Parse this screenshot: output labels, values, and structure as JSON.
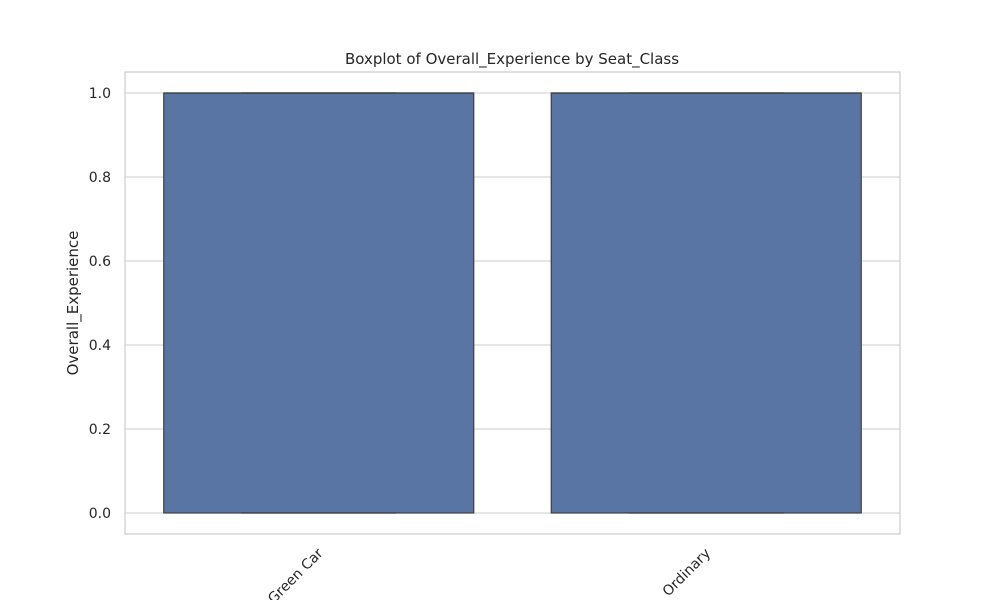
{
  "chart_data": {
    "type": "box",
    "title": "Boxplot of Overall_Experience by Seat_Class",
    "xlabel": "",
    "ylabel": "Overall_Experience",
    "categories": [
      "Green Car",
      "Ordinary"
    ],
    "boxes": [
      {
        "category": "Green Car",
        "min": 0.0,
        "q1": 0.0,
        "median": 1.0,
        "q3": 1.0,
        "max": 1.0
      },
      {
        "category": "Ordinary",
        "min": 0.0,
        "q1": 0.0,
        "median": 1.0,
        "q3": 1.0,
        "max": 1.0
      }
    ],
    "ylim": [
      -0.05,
      1.05
    ],
    "yticks": [
      0.0,
      0.2,
      0.4,
      0.6,
      0.8,
      1.0
    ],
    "ytick_labels": [
      "0.0",
      "0.2",
      "0.4",
      "0.6",
      "0.8",
      "1.0"
    ],
    "grid": "horizontal",
    "colors": {
      "box_fill": "#5875a4",
      "box_edge": "#3f3f3f",
      "grid": "#cccccc",
      "frame": "#cccccc"
    }
  }
}
